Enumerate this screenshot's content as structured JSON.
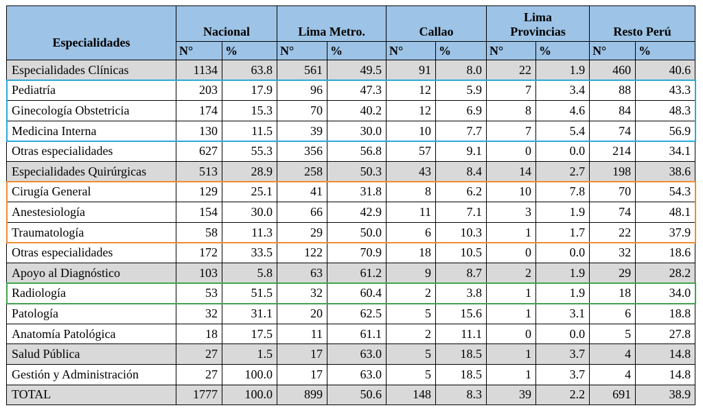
{
  "header": {
    "col_especialidades": "Especialidades",
    "groups": [
      "Nacional",
      "Lima Metro.",
      "Callao",
      "Lima Provincias",
      "Resto Perú"
    ],
    "group_line1": [
      "",
      "",
      "",
      "Lima",
      ""
    ],
    "group_line2": [
      "Nacional",
      "Lima Metro.",
      "Callao",
      "Provincias",
      "Resto Perú"
    ],
    "sub_n": "N°",
    "sub_pct": "%"
  },
  "rows": [
    {
      "name": "Especialidades Clínicas",
      "shaded": true,
      "values": [
        "1134",
        "63.8",
        "561",
        "49.5",
        "91",
        "8.0",
        "22",
        "1.9",
        "460",
        "40.6"
      ]
    },
    {
      "name": "Pediatría",
      "shaded": false,
      "values": [
        "203",
        "17.9",
        "96",
        "47.3",
        "12",
        "5.9",
        "7",
        "3.4",
        "88",
        "43.3"
      ]
    },
    {
      "name": "Ginecología Obstetricia",
      "shaded": false,
      "values": [
        "174",
        "15.3",
        "70",
        "40.2",
        "12",
        "6.9",
        "8",
        "4.6",
        "84",
        "48.3"
      ]
    },
    {
      "name": "Medicina Interna",
      "shaded": false,
      "values": [
        "130",
        "11.5",
        "39",
        "30.0",
        "10",
        "7.7",
        "7",
        "5.4",
        "74",
        "56.9"
      ]
    },
    {
      "name": "Otras especialidades",
      "shaded": false,
      "values": [
        "627",
        "55.3",
        "356",
        "56.8",
        "57",
        "9.1",
        "0",
        "0.0",
        "214",
        "34.1"
      ]
    },
    {
      "name": "Especialidades Quirúrgicas",
      "shaded": true,
      "values": [
        "513",
        "28.9",
        "258",
        "50.3",
        "43",
        "8.4",
        "14",
        "2.7",
        "198",
        "38.6"
      ]
    },
    {
      "name": "Cirugía General",
      "shaded": false,
      "values": [
        "129",
        "25.1",
        "41",
        "31.8",
        "8",
        "6.2",
        "10",
        "7.8",
        "70",
        "54.3"
      ]
    },
    {
      "name": "Anestesiología",
      "shaded": false,
      "values": [
        "154",
        "30.0",
        "66",
        "42.9",
        "11",
        "7.1",
        "3",
        "1.9",
        "74",
        "48.1"
      ]
    },
    {
      "name": "Traumatología",
      "shaded": false,
      "values": [
        "58",
        "11.3",
        "29",
        "50.0",
        "6",
        "10.3",
        "1",
        "1.7",
        "22",
        "37.9"
      ]
    },
    {
      "name": "Otras especialidades",
      "shaded": false,
      "values": [
        "172",
        "33.5",
        "122",
        "70.9",
        "18",
        "10.5",
        "0",
        "0.0",
        "32",
        "18.6"
      ]
    },
    {
      "name": "Apoyo al Diagnóstico",
      "shaded": true,
      "values": [
        "103",
        "5.8",
        "63",
        "61.2",
        "9",
        "8.7",
        "2",
        "1.9",
        "29",
        "28.2"
      ]
    },
    {
      "name": "Radiología",
      "shaded": false,
      "values": [
        "53",
        "51.5",
        "32",
        "60.4",
        "2",
        "3.8",
        "1",
        "1.9",
        "18",
        "34.0"
      ]
    },
    {
      "name": "Patología",
      "shaded": false,
      "values": [
        "32",
        "31.1",
        "20",
        "62.5",
        "5",
        "15.6",
        "1",
        "3.1",
        "6",
        "18.8"
      ]
    },
    {
      "name": "Anatomía Patológica",
      "shaded": false,
      "values": [
        "18",
        "17.5",
        "11",
        "61.1",
        "2",
        "11.1",
        "0",
        "0.0",
        "5",
        "27.8"
      ]
    },
    {
      "name": "Salud Pública",
      "shaded": true,
      "values": [
        "27",
        "1.5",
        "17",
        "63.0",
        "5",
        "18.5",
        "1",
        "3.7",
        "4",
        "14.8"
      ]
    },
    {
      "name": "Gestión y Administración",
      "shaded": false,
      "values": [
        "27",
        "100.0",
        "17",
        "63.0",
        "5",
        "18.5",
        "1",
        "3.7",
        "4",
        "14.8"
      ]
    },
    {
      "name": "TOTAL",
      "shaded": true,
      "values": [
        "1777",
        "100.0",
        "899",
        "50.6",
        "148",
        "8.3",
        "39",
        "2.2",
        "691",
        "38.9"
      ]
    }
  ],
  "highlights": [
    {
      "color": "#2aa8d8",
      "first_row": 1,
      "last_row": 3
    },
    {
      "color": "#f08a30",
      "first_row": 6,
      "last_row": 8
    },
    {
      "color": "#3fa34d",
      "first_row": 11,
      "last_row": 11
    }
  ],
  "colors": {
    "header_bg": "#9dc3e6",
    "shaded_row_bg": "#d9d9d9"
  }
}
